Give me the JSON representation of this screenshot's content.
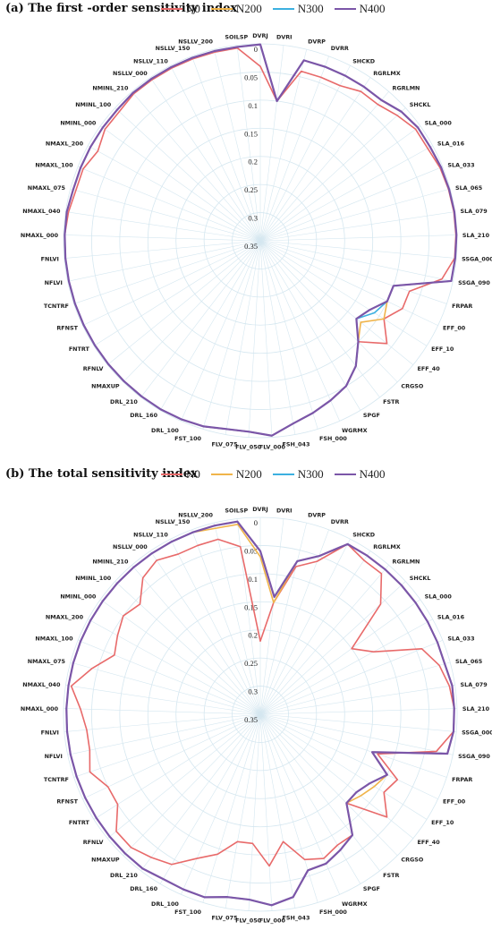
{
  "panels": [
    {
      "title": "(a) The first -order sensitivity index"
    },
    {
      "title": "(b) The total sensitivity index"
    }
  ],
  "legend": [
    {
      "name": "N0",
      "color": "#e86a6a"
    },
    {
      "name": "N200",
      "color": "#f0b44a"
    },
    {
      "name": "N300",
      "color": "#3cb0e0"
    },
    {
      "name": "N400",
      "color": "#7b56a8"
    }
  ],
  "chart_data": [
    {
      "type": "radar",
      "title": "(a) The first -order sensitivity index",
      "radial_reversed": true,
      "rlim": [
        0,
        0.35
      ],
      "ticks": [
        "0",
        "0.05",
        "0.1",
        "0.15",
        "0.2",
        "0.25",
        "0.3",
        "0.35"
      ],
      "tick_values": [
        0,
        0.05,
        0.1,
        0.15,
        0.2,
        0.25,
        0.3,
        0.35
      ],
      "categories": [
        "DVRJ",
        "DVRI",
        "DVRP",
        "DVRR",
        "SHCKD",
        "RGRLMX",
        "RGRLMN",
        "SHCKL",
        "SLA_000",
        "SLA_016",
        "SLA_033",
        "SLA_065",
        "SLA_079",
        "SLA_210",
        "SSGA_000",
        "SSGA_090",
        "FRPAR",
        "EFF_00",
        "EFF_10",
        "EFF_40",
        "CRGSO",
        "FSTR",
        "SPGF",
        "WGRMX",
        "FSH_000",
        "FSH_043",
        "FLV_000",
        "FLV_050",
        "FLV_075",
        "FST_100",
        "DRL_100",
        "DRL_160",
        "DRL_210",
        "NMAXUP",
        "RFNLV",
        "FNTRT",
        "RFNST",
        "TCNTRF",
        "NFLVI",
        "FNLVI",
        "NMAXL_000",
        "NMAXL_040",
        "NMAXL_075",
        "NMAXL_100",
        "NMAXL_200",
        "NMINL_000",
        "NMINL_100",
        "NMINL_210",
        "NSLLV_000",
        "NSLLV_110",
        "NSLLV_150",
        "NSLLV_200",
        "SOILSP"
      ],
      "series": [
        {
          "name": "N0",
          "color": "#e86a6a",
          "values": [
            0.04,
            0.1,
            0.04,
            0.04,
            0.04,
            0.03,
            0.03,
            0.02,
            0.01,
            0.01,
            0.005,
            0.003,
            0.002,
            0.002,
            0.003,
            0.02,
            0.07,
            0.07,
            0.09,
            0.06,
            0.1,
            0.07,
            0.05,
            0.04,
            0.03,
            0.02,
            0.003,
            0.01,
            0.01,
            0.005,
            0.003,
            0.002,
            0.002,
            0.002,
            0.002,
            0.002,
            0.002,
            0.002,
            0.002,
            0.002,
            0.002,
            0.005,
            0.01,
            0.01,
            0.02,
            0.01,
            0.01,
            0.005,
            0.005,
            0.005,
            0.005,
            0.005,
            0.005
          ]
        },
        {
          "name": "N200",
          "color": "#f0b44a",
          "values": [
            0.001,
            0.1,
            0.02,
            0.02,
            0.02,
            0.02,
            0.02,
            0.01,
            0.005,
            0.005,
            0.003,
            0.002,
            0.001,
            0.001,
            0.002,
            0.003,
            0.1,
            0.1,
            0.09,
            0.12,
            0.1,
            0.07,
            0.05,
            0.04,
            0.03,
            0.02,
            0.003,
            0.01,
            0.01,
            0.005,
            0.003,
            0.002,
            0.002,
            0.002,
            0.002,
            0.002,
            0.002,
            0.002,
            0.002,
            0.002,
            0.002,
            0.002,
            0.005,
            0.005,
            0.005,
            0.005,
            0.005,
            0.003,
            0.003,
            0.003,
            0.003,
            0.003,
            0.003
          ]
        },
        {
          "name": "N300",
          "color": "#3cb0e0",
          "values": [
            0.001,
            0.1,
            0.02,
            0.02,
            0.02,
            0.02,
            0.02,
            0.01,
            0.005,
            0.005,
            0.003,
            0.002,
            0.001,
            0.001,
            0.002,
            0.003,
            0.1,
            0.1,
            0.11,
            0.13,
            0.1,
            0.07,
            0.05,
            0.04,
            0.03,
            0.02,
            0.003,
            0.01,
            0.01,
            0.005,
            0.003,
            0.002,
            0.002,
            0.002,
            0.002,
            0.002,
            0.002,
            0.002,
            0.002,
            0.002,
            0.002,
            0.002,
            0.005,
            0.005,
            0.005,
            0.005,
            0.005,
            0.003,
            0.003,
            0.003,
            0.003,
            0.003,
            0.003
          ]
        },
        {
          "name": "N400",
          "color": "#7b56a8",
          "values": [
            0.001,
            0.1,
            0.02,
            0.02,
            0.02,
            0.02,
            0.02,
            0.01,
            0.005,
            0.005,
            0.003,
            0.002,
            0.001,
            0.001,
            0.002,
            0.003,
            0.1,
            0.1,
            0.12,
            0.13,
            0.1,
            0.07,
            0.05,
            0.04,
            0.03,
            0.02,
            0.003,
            0.01,
            0.01,
            0.005,
            0.003,
            0.002,
            0.002,
            0.002,
            0.002,
            0.002,
            0.002,
            0.002,
            0.002,
            0.002,
            0.002,
            0.002,
            0.005,
            0.005,
            0.005,
            0.005,
            0.005,
            0.003,
            0.003,
            0.003,
            0.003,
            0.003,
            0.003
          ]
        }
      ]
    },
    {
      "type": "radar",
      "title": "(b) The total sensitivity index",
      "radial_reversed": true,
      "rlim": [
        0,
        0.35
      ],
      "ticks": [
        "0",
        "0.05",
        "0.1",
        "0.15",
        "0.2",
        "0.25",
        "0.3",
        "0.35"
      ],
      "tick_values": [
        0,
        0.05,
        0.1,
        0.15,
        0.2,
        0.25,
        0.3,
        0.35
      ],
      "categories": [
        "DVRJ",
        "DVRI",
        "DVRP",
        "DVRR",
        "SHCKD",
        "RGRLMX",
        "RGRLMN",
        "SHCKL",
        "SLA_000",
        "SLA_016",
        "SLA_033",
        "SLA_065",
        "SLA_079",
        "SLA_210",
        "SSGA_000",
        "SSGA_090",
        "FRPAR",
        "EFF_00",
        "EFF_10",
        "EFF_40",
        "CRGSO",
        "FSTR",
        "SPGF",
        "WGRMX",
        "FSH_000",
        "FSH_043",
        "FLV_000",
        "FLV_050",
        "FLV_075",
        "FST_100",
        "DRL_100",
        "DRL_160",
        "DRL_210",
        "NMAXUP",
        "RFNLV",
        "FNTRT",
        "RFNST",
        "TCNTRF",
        "NFLVI",
        "FNLVI",
        "NMAXL_000",
        "NMAXL_040",
        "NMAXL_075",
        "NMAXL_100",
        "NMAXL_200",
        "NMINL_000",
        "NMINL_100",
        "NMINL_210",
        "NSLLV_000",
        "NSLLV_110",
        "NSLLV_150",
        "NSLLV_200",
        "SOILSP"
      ],
      "series": [
        {
          "name": "N0",
          "color": "#e86a6a",
          "values": [
            0.22,
            0.15,
            0.08,
            0.06,
            0.01,
            0.02,
            0.02,
            0.06,
            0.15,
            0.12,
            0.04,
            0.02,
            0.01,
            0.005,
            0.005,
            0.03,
            0.13,
            0.08,
            0.09,
            0.06,
            0.13,
            0.08,
            0.08,
            0.07,
            0.08,
            0.12,
            0.08,
            0.12,
            0.12,
            0.09,
            0.07,
            0.04,
            0.03,
            0.02,
            0.02,
            0.05,
            0.05,
            0.03,
            0.04,
            0.04,
            0.03,
            0.01,
            0.04,
            0.07,
            0.06,
            0.05,
            0.06,
            0.03,
            0.02,
            0.03,
            0.03,
            0.03,
            0.05
          ]
        },
        {
          "name": "N200",
          "color": "#f0b44a",
          "values": [
            0.07,
            0.15,
            0.07,
            0.05,
            0.01,
            0.01,
            0.01,
            0.01,
            0.01,
            0.01,
            0.01,
            0.01,
            0.005,
            0.005,
            0.005,
            0.01,
            0.14,
            0.1,
            0.11,
            0.12,
            0.13,
            0.08,
            0.07,
            0.06,
            0.06,
            0.02,
            0.01,
            0.02,
            0.02,
            0.01,
            0.01,
            0.01,
            0.005,
            0.005,
            0.005,
            0.005,
            0.005,
            0.005,
            0.005,
            0.005,
            0.005,
            0.005,
            0.005,
            0.005,
            0.005,
            0.005,
            0.005,
            0.005,
            0.005,
            0.005,
            0.005,
            0.01,
            0.01
          ]
        },
        {
          "name": "N300",
          "color": "#3cb0e0",
          "values": [
            0.06,
            0.14,
            0.07,
            0.05,
            0.01,
            0.01,
            0.01,
            0.01,
            0.01,
            0.01,
            0.01,
            0.01,
            0.005,
            0.005,
            0.005,
            0.01,
            0.14,
            0.1,
            0.12,
            0.13,
            0.13,
            0.08,
            0.07,
            0.06,
            0.06,
            0.02,
            0.01,
            0.02,
            0.02,
            0.01,
            0.01,
            0.01,
            0.005,
            0.005,
            0.005,
            0.005,
            0.005,
            0.005,
            0.005,
            0.005,
            0.005,
            0.005,
            0.005,
            0.005,
            0.005,
            0.005,
            0.005,
            0.005,
            0.005,
            0.005,
            0.005,
            0.005,
            0.005
          ]
        },
        {
          "name": "N400",
          "color": "#7b56a8",
          "values": [
            0.06,
            0.14,
            0.07,
            0.05,
            0.01,
            0.01,
            0.01,
            0.01,
            0.01,
            0.01,
            0.01,
            0.01,
            0.005,
            0.005,
            0.005,
            0.01,
            0.14,
            0.1,
            0.12,
            0.13,
            0.13,
            0.08,
            0.07,
            0.06,
            0.06,
            0.02,
            0.01,
            0.02,
            0.02,
            0.01,
            0.01,
            0.01,
            0.005,
            0.005,
            0.005,
            0.005,
            0.005,
            0.005,
            0.005,
            0.005,
            0.005,
            0.005,
            0.005,
            0.005,
            0.005,
            0.005,
            0.005,
            0.005,
            0.005,
            0.005,
            0.005,
            0.005,
            0.005
          ]
        }
      ]
    }
  ]
}
